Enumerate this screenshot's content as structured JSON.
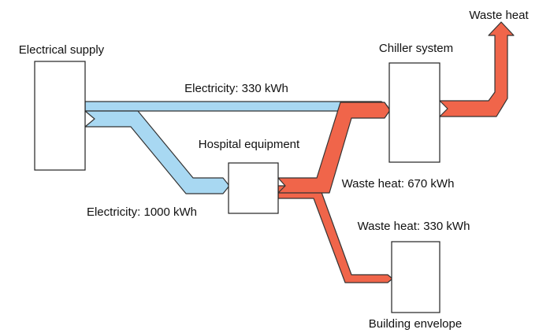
{
  "nodes": [
    {
      "label": "Electrical supply"
    },
    {
      "label": "Hospital equipment"
    },
    {
      "label": "Chiller system"
    },
    {
      "label": "Building envelope"
    },
    {
      "label": "Waste heat"
    }
  ],
  "links": [
    {
      "label": "Electricity: 330 kWh"
    },
    {
      "label": "Electricity: 1000 kWh"
    },
    {
      "label": "Waste heat: 670 kWh"
    },
    {
      "label": "Waste heat: 330 kWh"
    }
  ]
}
